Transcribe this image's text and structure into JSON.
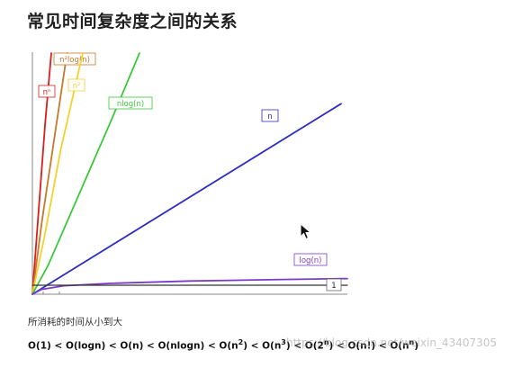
{
  "title": "常见时间复杂度之间的关系",
  "caption": "所消耗的时间从小到大",
  "order": {
    "o1": "O(1) < O(logn) < O(n) < O(nlogn) < O(n",
    "sup2": "2",
    "o2": ") < O(n",
    "sup3": "3",
    "o3": ") < O(2",
    "supn": "n",
    "o4": ") < O(n!) < O(n",
    "supn2": "n",
    "o5": ")"
  },
  "watermark": "https://blog.csdn.net/weixin_43407305",
  "colors": {
    "n_n": "#d81e1e",
    "n2_logn": "#c8782a",
    "n2": "#f4d12a",
    "nlogn": "#3cc83c",
    "n": "#2d2dc0",
    "logn": "#7a3cc8",
    "one": "#333333"
  },
  "chart_data": {
    "type": "line",
    "title": "",
    "xlabel": "",
    "ylabel": "",
    "series": [
      {
        "name": "nⁿ",
        "color_key": "n_n",
        "x": [
          0,
          0.02,
          0.04,
          0.06
        ],
        "y": [
          0,
          0.35,
          0.7,
          1.0
        ]
      },
      {
        "name": "n²log(n)",
        "color_key": "n2_logn",
        "x": [
          0,
          0.03,
          0.07,
          0.11
        ],
        "y": [
          0,
          0.3,
          0.65,
          1.0
        ]
      },
      {
        "name": "n²",
        "color_key": "n2",
        "x": [
          0,
          0.04,
          0.09,
          0.16
        ],
        "y": [
          0,
          0.25,
          0.6,
          1.0
        ]
      },
      {
        "name": "nlog(n)",
        "color_key": "nlogn",
        "x": [
          0,
          0.05,
          0.15,
          0.25,
          0.34
        ],
        "y": [
          0,
          0.12,
          0.42,
          0.72,
          1.0
        ]
      },
      {
        "name": "n",
        "color_key": "n",
        "x": [
          0,
          0.98
        ],
        "y": [
          0,
          0.79
        ]
      },
      {
        "name": "log(n)",
        "color_key": "logn",
        "x": [
          0,
          0.03,
          0.1,
          0.25,
          0.5,
          0.75,
          1.0
        ],
        "y": [
          0,
          0.02,
          0.035,
          0.045,
          0.055,
          0.06,
          0.065
        ]
      },
      {
        "name": "1",
        "color_key": "one",
        "x": [
          0,
          1.0
        ],
        "y": [
          0.0,
          0.0
        ]
      }
    ]
  }
}
